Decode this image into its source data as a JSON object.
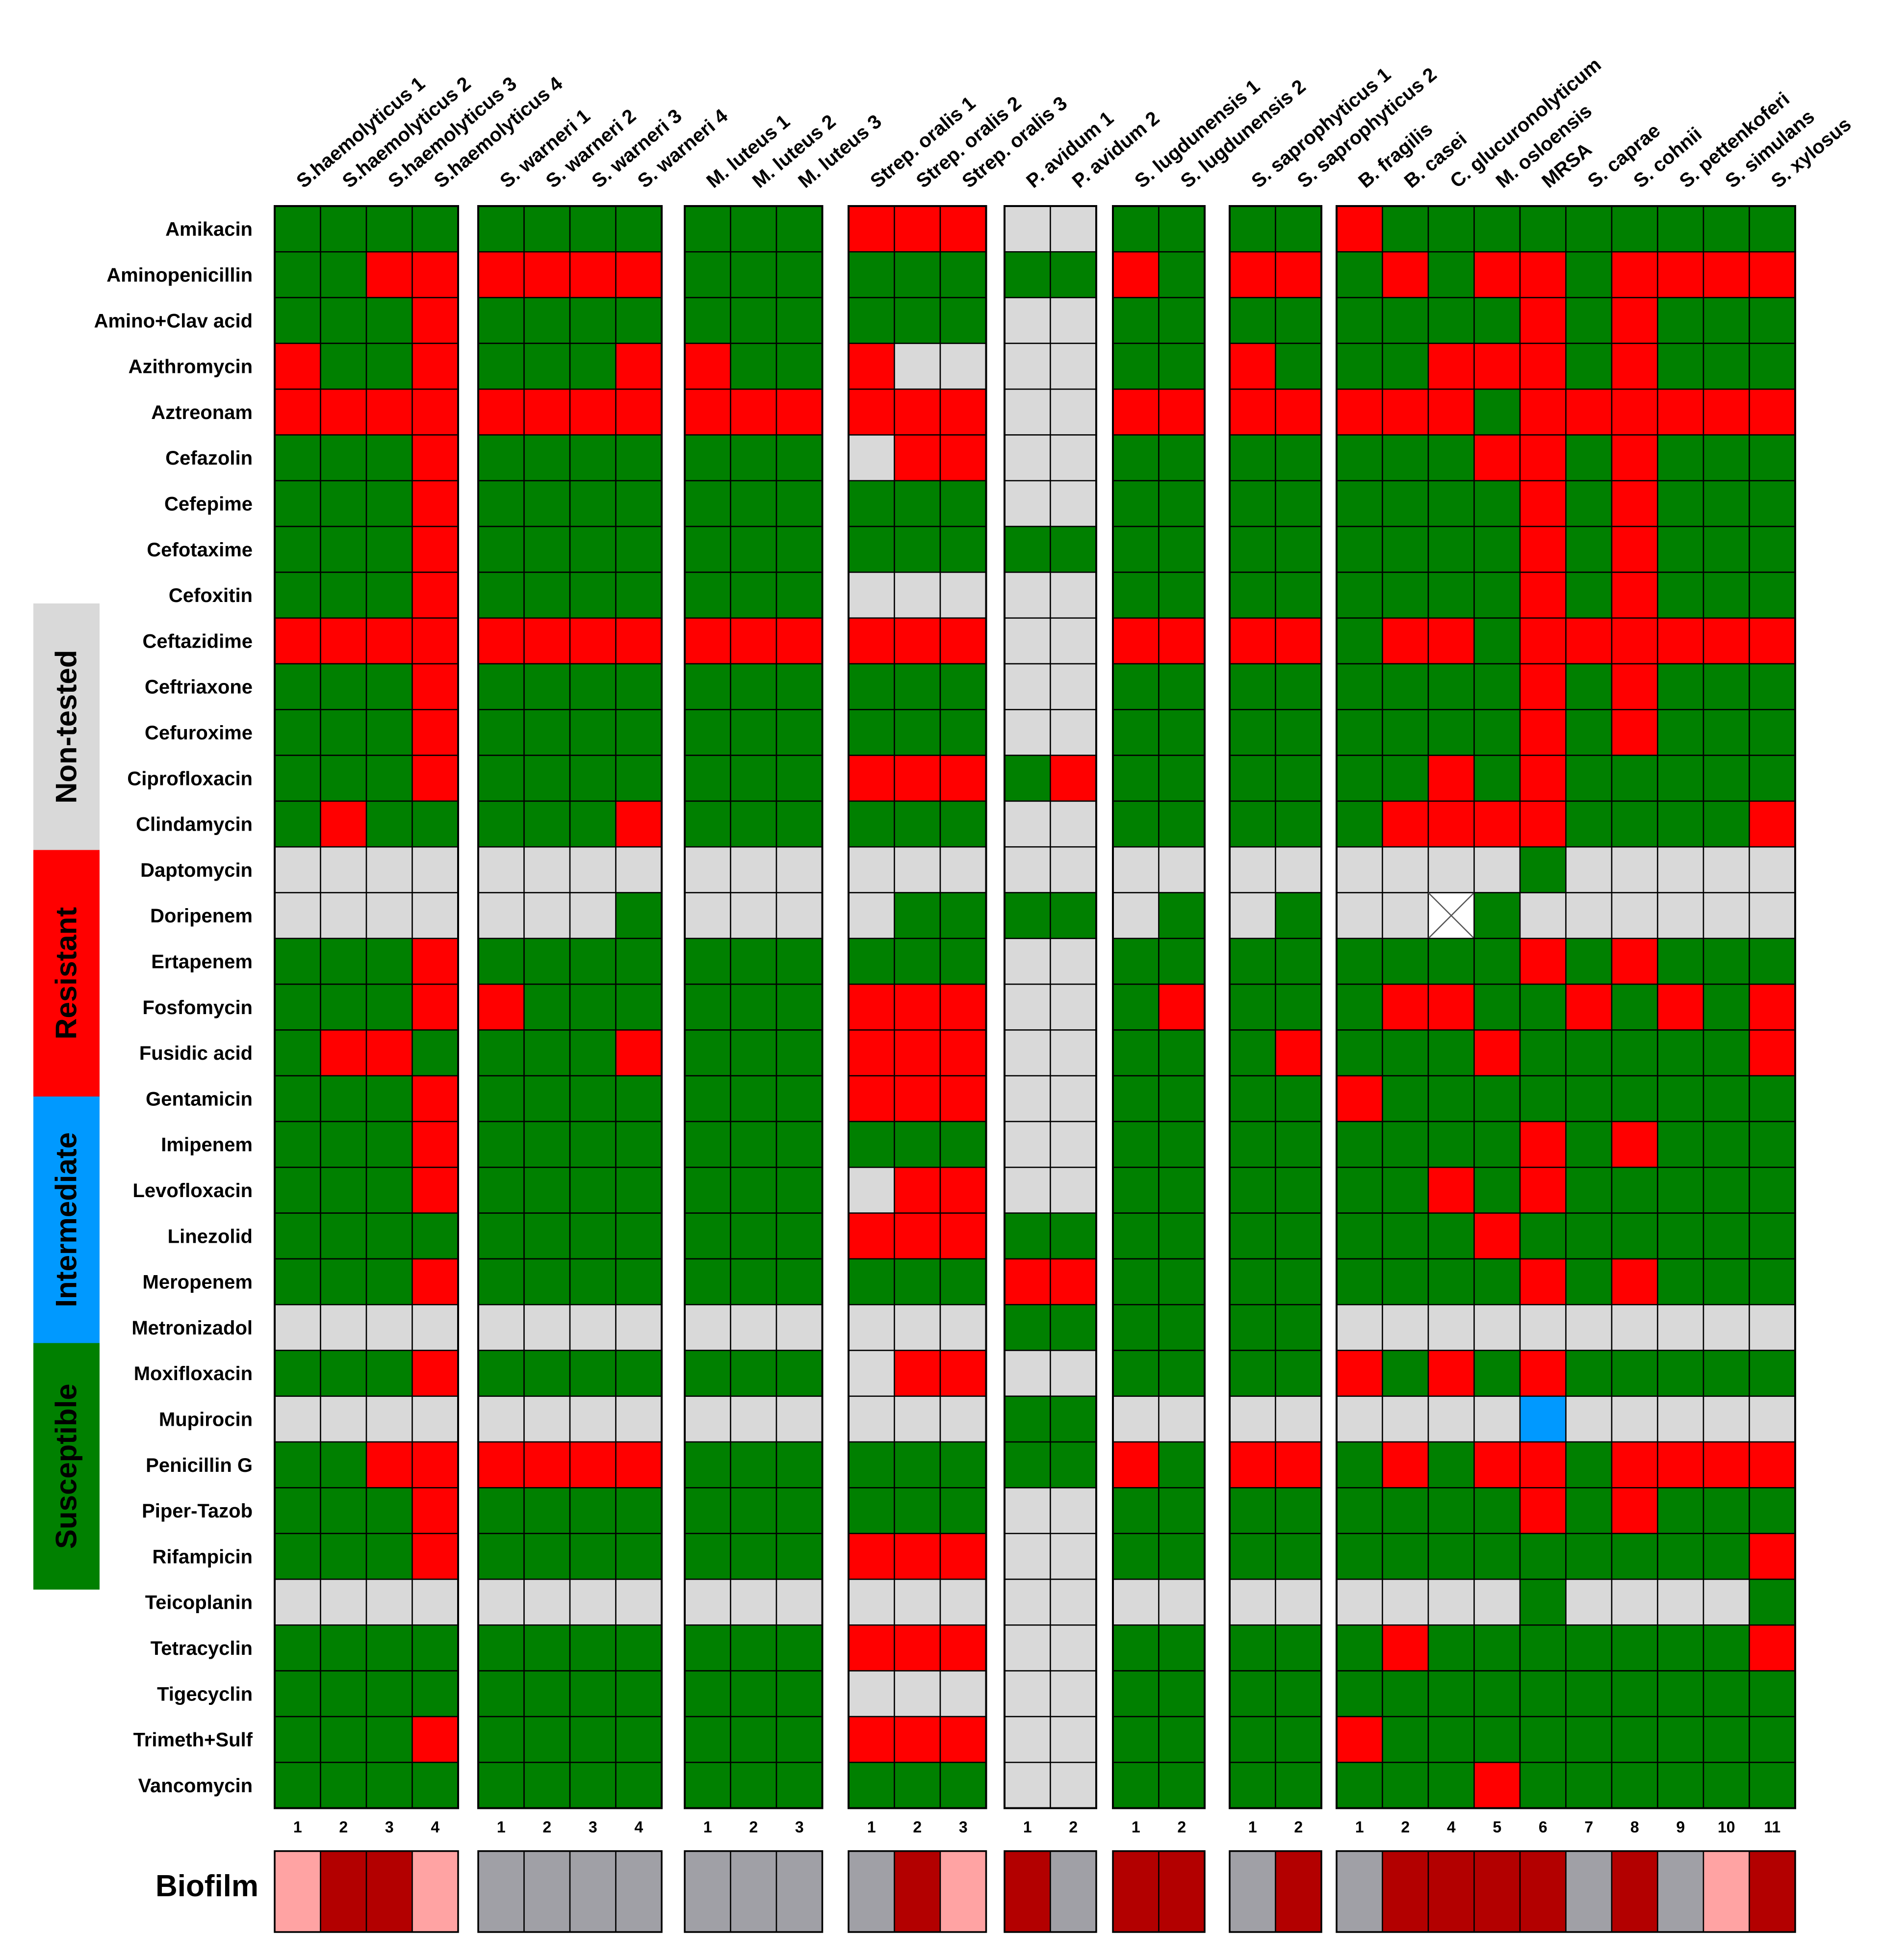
{
  "colors": {
    "S": "#008000",
    "R": "#ff0000",
    "I": "#0099ff",
    "N": "#d9d9d9",
    "X": "#ffffff",
    "bio_high": "#b30000",
    "bio_low": "#ffa3a3",
    "bio_none": "#a0a0a6",
    "border": "#000000"
  },
  "chart_data": {
    "type": "heatmap",
    "title": "",
    "biofilm_label": "Biofilm",
    "legend": [
      {
        "key": "N",
        "label": "Non-tested"
      },
      {
        "key": "R",
        "label": "Resistant"
      },
      {
        "key": "I",
        "label": "Intermediate"
      },
      {
        "key": "S",
        "label": "Susceptible"
      }
    ],
    "antibiotics": [
      "Amikacin",
      "Aminopenicillin",
      "Amino+Clav acid",
      "Azithromycin",
      "Aztreonam",
      "Cefazolin",
      "Cefepime",
      "Cefotaxime",
      "Cefoxitin",
      "Ceftazidime",
      "Ceftriaxone",
      "Cefuroxime",
      "Ciprofloxacin",
      "Clindamycin",
      "Daptomycin",
      "Doripenem",
      "Ertapenem",
      "Fosfomycin",
      "Fusidic acid",
      "Gentamicin",
      "Imipenem",
      "Levofloxacin",
      "Linezolid",
      "Meropenem",
      "Metronizadol",
      "Moxifloxacin",
      "Mupirocin",
      "Penicillin G",
      "Piper-Tazob",
      "Rifampicin",
      "Teicoplanin",
      "Tetracyclin",
      "Tigecyclin",
      "Trimeth+Sulf",
      "Vancomycin"
    ],
    "groups": [
      {
        "isolates": [
          "S.haemolyticus 1",
          "S.haemolyticus 2",
          "S.haemolyticus 3",
          "S.haemolyticus 4"
        ],
        "numbers": [
          "1",
          "2",
          "3",
          "4"
        ],
        "biofilm": [
          "low",
          "high",
          "high",
          "low"
        ],
        "data": [
          "SSSS",
          "SSRR",
          "SSSR",
          "RSSR",
          "RRRR",
          "SSSR",
          "SSSR",
          "SSSR",
          "SSSR",
          "RRRR",
          "SSSR",
          "SSSR",
          "SSSR",
          "SRSS",
          "NNNN",
          "NNNN",
          "SSSR",
          "SSSR",
          "SRRS",
          "SSSR",
          "SSSR",
          "SSSR",
          "SSSS",
          "SSSR",
          "NNNN",
          "SSSR",
          "NNNN",
          "SSRR",
          "SSSR",
          "SSSR",
          "NNNN",
          "SSSS",
          "SSSS",
          "SSSR",
          "SSSS"
        ]
      },
      {
        "isolates": [
          "S. warneri 1",
          "S. warneri 2",
          "S. warneri 3",
          "S. warneri 4"
        ],
        "numbers": [
          "1",
          "2",
          "3",
          "4"
        ],
        "biofilm": [
          "none",
          "none",
          "none",
          "none"
        ],
        "data": [
          "SSSS",
          "RRRR",
          "SSSS",
          "SSSR",
          "RRRR",
          "SSSS",
          "SSSS",
          "SSSS",
          "SSSS",
          "RRRR",
          "SSSS",
          "SSSS",
          "SSSS",
          "SSSR",
          "NNNN",
          "NNNS",
          "SSSS",
          "RSSS",
          "SSSR",
          "SSSS",
          "SSSS",
          "SSSS",
          "SSSS",
          "SSSS",
          "NNNN",
          "SSSS",
          "NNNN",
          "RRRR",
          "SSSS",
          "SSSS",
          "NNNN",
          "SSSS",
          "SSSS",
          "SSSS",
          "SSSS"
        ]
      },
      {
        "isolates": [
          "M. luteus 1",
          "M. luteus 2",
          "M. luteus 3"
        ],
        "numbers": [
          "1",
          "2",
          "3"
        ],
        "biofilm": [
          "none",
          "none",
          "none"
        ],
        "data": [
          "SSS",
          "SSS",
          "SSS",
          "RSS",
          "RRR",
          "SSS",
          "SSS",
          "SSS",
          "SSS",
          "RRR",
          "SSS",
          "SSS",
          "SSS",
          "SSS",
          "NNN",
          "NNN",
          "SSS",
          "SSS",
          "SSS",
          "SSS",
          "SSS",
          "SSS",
          "SSS",
          "SSS",
          "NNN",
          "SSS",
          "NNN",
          "SSS",
          "SSS",
          "SSS",
          "NNN",
          "SSS",
          "SSS",
          "SSS",
          "SSS"
        ]
      },
      {
        "isolates": [
          "Strep. oralis 1",
          "Strep. oralis 2",
          "Strep. oralis 3"
        ],
        "numbers": [
          "1",
          "2",
          "3"
        ],
        "biofilm": [
          "none",
          "high",
          "low"
        ],
        "data": [
          "RRR",
          "SSS",
          "SSS",
          "RNN",
          "RRR",
          "NRR",
          "SSS",
          "SSS",
          "NNN",
          "RRR",
          "SSS",
          "SSS",
          "RRR",
          "SSS",
          "NNN",
          "NSS",
          "SSS",
          "RRR",
          "RRR",
          "RRR",
          "SSS",
          "NRR",
          "RRR",
          "SSS",
          "NNN",
          "NRR",
          "NNN",
          "SSS",
          "SSS",
          "RRR",
          "NNN",
          "RRR",
          "NNN",
          "RRR",
          "SSS"
        ]
      },
      {
        "isolates": [
          "P. avidum 1",
          "P. avidum 2"
        ],
        "numbers": [
          "1",
          "2"
        ],
        "biofilm": [
          "high",
          "none"
        ],
        "data": [
          "NN",
          "SS",
          "NN",
          "NN",
          "NN",
          "NN",
          "NN",
          "SS",
          "NN",
          "NN",
          "NN",
          "NN",
          "SR",
          "NN",
          "NN",
          "SS",
          "NN",
          "NN",
          "NN",
          "NN",
          "NN",
          "NN",
          "SS",
          "RR",
          "SS",
          "NN",
          "SS",
          "SS",
          "NN",
          "NN",
          "NN",
          "NN",
          "NN",
          "NN",
          "NN"
        ]
      },
      {
        "isolates": [
          "S. lugdunensis 1",
          "S. lugdunensis 2"
        ],
        "numbers": [
          "1",
          "2"
        ],
        "biofilm": [
          "high",
          "high"
        ],
        "data": [
          "SS",
          "RS",
          "SS",
          "SS",
          "RR",
          "SS",
          "SS",
          "SS",
          "SS",
          "RR",
          "SS",
          "SS",
          "SS",
          "SS",
          "NN",
          "NS",
          "SS",
          "SR",
          "SS",
          "SS",
          "SS",
          "SS",
          "SS",
          "SS",
          "SS",
          "SS",
          "NN",
          "RS",
          "SS",
          "SS",
          "NN",
          "SS",
          "SS",
          "SS",
          "SS"
        ]
      },
      {
        "isolates": [
          "S. saprophyticus 1",
          "S. saprophyticus 2"
        ],
        "numbers": [
          "1",
          "2"
        ],
        "biofilm": [
          "none",
          "high"
        ],
        "data": [
          "SS",
          "RR",
          "SS",
          "RS",
          "RR",
          "SS",
          "SS",
          "SS",
          "SS",
          "RR",
          "SS",
          "SS",
          "SS",
          "SS",
          "NN",
          "NS",
          "SS",
          "SS",
          "SR",
          "SS",
          "SS",
          "SS",
          "SS",
          "SS",
          "SS",
          "SS",
          "NN",
          "RR",
          "SS",
          "SS",
          "NN",
          "SS",
          "SS",
          "SS",
          "SS"
        ]
      },
      {
        "isolates": [
          "B. fragilis",
          "B. casei",
          "C. glucuronolyticum",
          "M. osloensis",
          "MRSA",
          "S. caprae",
          "S. cohnii",
          "S. pettenkoferi",
          "S. simulans",
          "S. xylosus"
        ],
        "numbers": [
          "1",
          "2",
          "4",
          "5",
          "6",
          "7",
          "8",
          "9",
          "10",
          "11"
        ],
        "biofilm": [
          "none",
          "high",
          "high",
          "high",
          "high",
          "none",
          "high",
          "none",
          "low",
          "high"
        ],
        "data": [
          "RSSSSSSSSS",
          "SRSRRSRRRR",
          "SSSSRSRSSS",
          "SSRRRSRSSS",
          "RRRSRRRRRR",
          "SSSRRSRSSS",
          "SSSSRSRSSS",
          "SSSSRSRSSS",
          "SSSSRSRSSS",
          "SRRSRRRRRR",
          "SSSSRSRSSS",
          "SSSSRSRSSS",
          "SSRSRSSSSS",
          "SRRRRSSSSR",
          "NNNNSNNNNN",
          "NNXSNNNNNN",
          "SSSSRSRSSS",
          "SRRSSRSRSR",
          "SSSRSSSSSR",
          "RSSSSSSSSS",
          "SSSSRSRSSS",
          "SSRSRSSSSS",
          "SSSRSSSSSS",
          "SSSSRSRSSS",
          "NNNNNNNNNN",
          "RSRSRSSSSS",
          "NNNNINNNNN",
          "SRSRRSRRRR",
          "SSSSRSRSSS",
          "SSSSSSSSSR",
          "NNNNSNNNNS",
          "SRSSSSSSSR",
          "SSSSSSSSSS",
          "RSSSSSSSSS",
          "SSSRSSSSSS"
        ]
      }
    ]
  }
}
